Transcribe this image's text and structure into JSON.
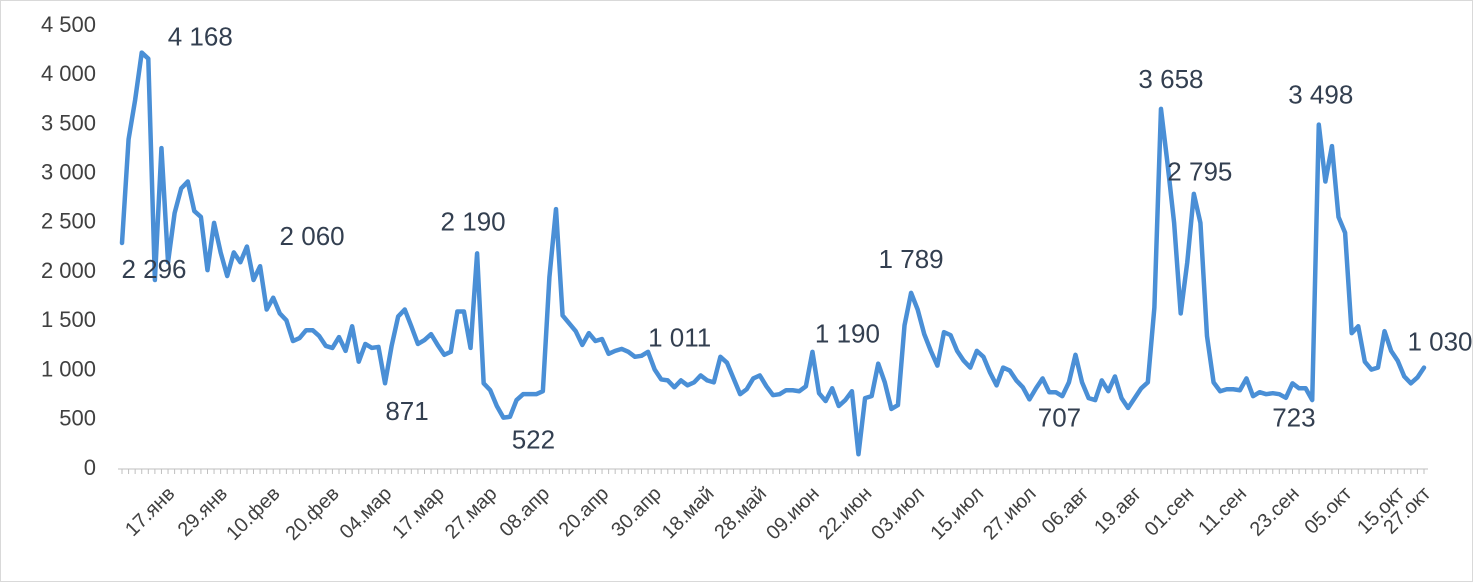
{
  "chart_data": {
    "type": "line",
    "categories": [
      null,
      null,
      null,
      null,
      null,
      null,
      null,
      "17.янв",
      null,
      null,
      null,
      null,
      null,
      null,
      null,
      "29.янв",
      null,
      null,
      null,
      null,
      null,
      null,
      null,
      "10.фев",
      null,
      null,
      null,
      null,
      null,
      null,
      null,
      null,
      "20.фев",
      null,
      null,
      null,
      null,
      null,
      null,
      null,
      "04.мар",
      null,
      null,
      null,
      null,
      null,
      null,
      null,
      "17.мар",
      null,
      null,
      null,
      null,
      null,
      null,
      null,
      "27.мар",
      null,
      null,
      null,
      null,
      null,
      null,
      null,
      "08.апр",
      null,
      null,
      null,
      null,
      null,
      null,
      null,
      null,
      "20.апр",
      null,
      null,
      null,
      null,
      null,
      null,
      null,
      "30.апр",
      null,
      null,
      null,
      null,
      null,
      null,
      null,
      "18.май",
      null,
      null,
      null,
      null,
      null,
      null,
      null,
      "28.май",
      null,
      null,
      null,
      null,
      null,
      null,
      null,
      "09.июн",
      null,
      null,
      null,
      null,
      null,
      null,
      null,
      "22.июн",
      null,
      null,
      null,
      null,
      null,
      null,
      null,
      "03.июл",
      null,
      null,
      null,
      null,
      null,
      null,
      null,
      null,
      "15.июл",
      null,
      null,
      null,
      null,
      null,
      null,
      null,
      "27.июл",
      null,
      null,
      null,
      null,
      null,
      null,
      null,
      "06.авг",
      null,
      null,
      null,
      null,
      null,
      null,
      null,
      "19.авг",
      null,
      null,
      null,
      null,
      null,
      null,
      null,
      "01.сен",
      null,
      null,
      null,
      null,
      null,
      null,
      null,
      "11.сен",
      null,
      null,
      null,
      null,
      null,
      null,
      null,
      "23.сен",
      null,
      null,
      null,
      null,
      null,
      null,
      null,
      "05.окт",
      null,
      null,
      null,
      null,
      null,
      null,
      null,
      "15.окт",
      null,
      null,
      null,
      "27.окт"
    ],
    "series": [
      {
        "name": null,
        "color": "#4a8fd6",
        "values": [
          2296,
          3350,
          3750,
          4230,
          4168,
          1920,
          3260,
          2100,
          2600,
          2850,
          2920,
          2620,
          2560,
          2020,
          2500,
          2200,
          1960,
          2200,
          2100,
          2260,
          1920,
          2060,
          1620,
          1740,
          1580,
          1510,
          1300,
          1330,
          1410,
          1410,
          1350,
          1250,
          1230,
          1340,
          1200,
          1450,
          1090,
          1270,
          1230,
          1240,
          871,
          1250,
          1550,
          1620,
          1450,
          1270,
          1310,
          1370,
          1260,
          1160,
          1190,
          1600,
          1600,
          1230,
          2190,
          870,
          800,
          640,
          522,
          530,
          700,
          760,
          760,
          760,
          790,
          1950,
          2640,
          1560,
          1480,
          1400,
          1260,
          1380,
          1300,
          1320,
          1170,
          1200,
          1220,
          1190,
          1140,
          1150,
          1190,
          1011,
          910,
          900,
          830,
          900,
          850,
          880,
          950,
          900,
          880,
          1140,
          1080,
          920,
          760,
          810,
          920,
          950,
          840,
          750,
          760,
          800,
          800,
          790,
          840,
          1190,
          770,
          690,
          820,
          640,
          700,
          790,
          150,
          720,
          740,
          1070,
          880,
          610,
          650,
          1460,
          1789,
          1620,
          1370,
          1200,
          1050,
          1390,
          1360,
          1200,
          1100,
          1030,
          1200,
          1140,
          980,
          850,
          1030,
          1000,
          900,
          830,
          707,
          820,
          920,
          780,
          780,
          740,
          880,
          1160,
          880,
          720,
          700,
          900,
          790,
          940,
          720,
          620,
          720,
          820,
          880,
          1640,
          3658,
          3100,
          2500,
          1580,
          2100,
          2795,
          2500,
          1350,
          880,
          790,
          810,
          810,
          800,
          920,
          740,
          780,
          760,
          770,
          760,
          723,
          870,
          820,
          820,
          700,
          3498,
          2920,
          3280,
          2560,
          2400,
          1380,
          1450,
          1090,
          1010,
          1030,
          1400,
          1200,
          1100,
          940,
          870,
          930,
          1030
        ],
        "value_labels": [
          "2 296",
          null,
          null,
          null,
          "4 168",
          null,
          null,
          null,
          null,
          null,
          null,
          null,
          null,
          null,
          null,
          null,
          null,
          null,
          null,
          null,
          null,
          "2 060",
          null,
          null,
          null,
          null,
          null,
          null,
          null,
          null,
          null,
          null,
          null,
          null,
          null,
          null,
          null,
          null,
          null,
          null,
          "871",
          null,
          null,
          null,
          null,
          null,
          null,
          null,
          null,
          null,
          null,
          null,
          null,
          null,
          "2 190",
          null,
          null,
          null,
          "522",
          null,
          null,
          null,
          null,
          null,
          null,
          null,
          null,
          null,
          null,
          null,
          null,
          null,
          null,
          null,
          null,
          null,
          null,
          null,
          null,
          null,
          null,
          "1 011",
          null,
          null,
          null,
          null,
          null,
          null,
          null,
          null,
          null,
          null,
          null,
          null,
          null,
          null,
          null,
          null,
          null,
          null,
          null,
          null,
          null,
          null,
          null,
          "1 190",
          null,
          null,
          null,
          null,
          null,
          null,
          null,
          null,
          null,
          null,
          null,
          null,
          null,
          null,
          "1 789",
          null,
          null,
          null,
          null,
          null,
          null,
          null,
          null,
          null,
          null,
          null,
          null,
          null,
          null,
          null,
          null,
          null,
          "707",
          null,
          null,
          null,
          null,
          null,
          null,
          null,
          null,
          null,
          null,
          null,
          null,
          null,
          null,
          null,
          null,
          null,
          null,
          null,
          "3 658",
          null,
          null,
          null,
          null,
          "2 795",
          null,
          null,
          null,
          null,
          null,
          null,
          null,
          null,
          null,
          null,
          null,
          null,
          null,
          "723",
          null,
          null,
          null,
          null,
          "3 498",
          null,
          null,
          null,
          null,
          null,
          null,
          null,
          null,
          null,
          null,
          null,
          null,
          null,
          null,
          null,
          "1 030"
        ]
      }
    ],
    "ylim": [
      0,
      4500
    ],
    "yticks": [
      0,
      500,
      {
        "value": 1000,
        "label": "1 000"
      },
      {
        "value": 1500,
        "label": "1 500"
      },
      {
        "value": 2000,
        "label": "2 000"
      },
      {
        "value": 2500,
        "label": "2 500"
      },
      {
        "value": 3000,
        "label": "3 000"
      },
      {
        "value": 3500,
        "label": "3 500"
      },
      {
        "value": 4000,
        "label": "4 000"
      },
      {
        "value": 4500,
        "label": "4 500"
      }
    ],
    "grid": false
  }
}
